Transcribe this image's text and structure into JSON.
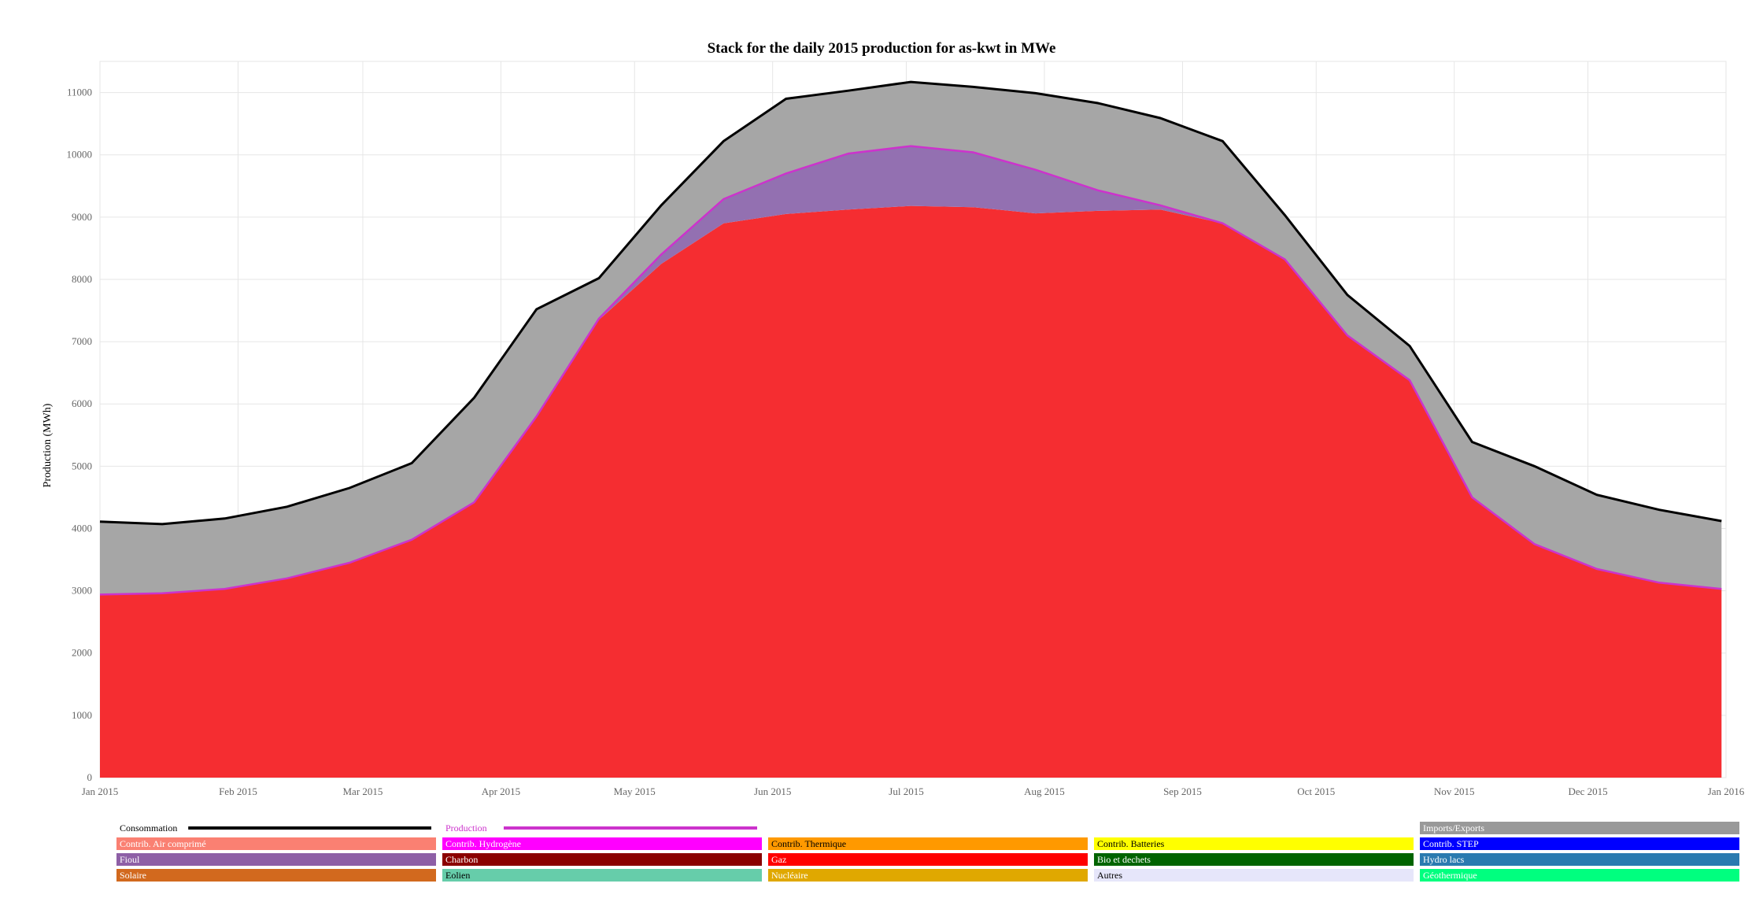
{
  "chart_data": {
    "type": "area",
    "title": "Stack for the daily 2015 production for as-kwt in MWe",
    "ylabel": "Production (MWh)",
    "xlabel": "",
    "ylim": [
      0,
      11500
    ],
    "yticks": [
      0,
      1000,
      2000,
      3000,
      4000,
      5000,
      6000,
      7000,
      8000,
      9000,
      10000,
      11000
    ],
    "x_tick_labels": [
      "Jan 2015",
      "Feb 2015",
      "Mar 2015",
      "Apr 2015",
      "May 2015",
      "Jun 2015",
      "Jul 2015",
      "Aug 2015",
      "Sep 2015",
      "Oct 2015",
      "Nov 2015",
      "Dec 2015",
      "Jan 2016"
    ],
    "x_tick_days": [
      0,
      31,
      59,
      90,
      120,
      151,
      181,
      212,
      243,
      273,
      304,
      334,
      365
    ],
    "grid": true,
    "legend_position": "bottom",
    "days": [
      0,
      14,
      28,
      42,
      56,
      70,
      84,
      98,
      112,
      126,
      140,
      154,
      168,
      182,
      196,
      210,
      224,
      238,
      252,
      266,
      280,
      294,
      308,
      322,
      336,
      350,
      364
    ],
    "series": [
      {
        "name": "Gaz",
        "color": "#f52d31",
        "values": [
          2940,
          2960,
          3030,
          3200,
          3450,
          3820,
          4420,
          5800,
          7350,
          8250,
          8900,
          9050,
          9120,
          9180,
          9160,
          9060,
          9100,
          9120,
          8900,
          8320,
          7100,
          6380,
          4500,
          3750,
          3350,
          3130,
          3030
        ]
      },
      {
        "name": "Fioul",
        "color": "#9370b1",
        "values": [
          0,
          0,
          0,
          0,
          0,
          0,
          0,
          0,
          20,
          150,
          390,
          650,
          900,
          960,
          880,
          700,
          330,
          70,
          0,
          0,
          0,
          0,
          0,
          0,
          0,
          0,
          0
        ]
      },
      {
        "name": "Imports/Exports",
        "color": "#a6a6a6",
        "values": [
          1170,
          1110,
          1130,
          1150,
          1200,
          1230,
          1680,
          1720,
          650,
          790,
          930,
          1200,
          1010,
          1030,
          1050,
          1230,
          1400,
          1400,
          1320,
          710,
          650,
          550,
          890,
          1250,
          1190,
          1170,
          1090
        ]
      }
    ],
    "consommation": {
      "name": "Consommation",
      "color": "#000000",
      "values": [
        4110,
        4070,
        4160,
        4350,
        4650,
        5050,
        6100,
        7520,
        8020,
        9190,
        10220,
        10900,
        11030,
        11170,
        11090,
        10990,
        10830,
        10590,
        10220,
        9030,
        7750,
        6930,
        5390,
        5000,
        4540,
        4300,
        4120
      ]
    },
    "production": {
      "name": "Production",
      "color": "#cc33cc"
    }
  },
  "legend": {
    "line_items": [
      {
        "label": "Consommation",
        "color": "#000000"
      },
      {
        "label": "Production",
        "color": "#cc33cc"
      }
    ],
    "box_items": [
      {
        "label": "Imports/Exports",
        "color": "#999999",
        "text_color": "#ffffff",
        "col": 4,
        "row": 0
      },
      {
        "label": "Contrib. Air comprimé",
        "color": "#fa8072",
        "text_color": "#ffffff",
        "col": 0,
        "row": 1
      },
      {
        "label": "Contrib. Hydrogène",
        "color": "#ff00ff",
        "text_color": "#ffffff",
        "col": 1,
        "row": 1
      },
      {
        "label": "Contrib. Thermique",
        "color": "#ff9900",
        "text_color": "#000000",
        "col": 2,
        "row": 1
      },
      {
        "label": "Contrib. Batteries",
        "color": "#ffff00",
        "text_color": "#000000",
        "col": 3,
        "row": 1
      },
      {
        "label": "Contrib. STEP",
        "color": "#0000ff",
        "text_color": "#ffffff",
        "col": 4,
        "row": 1
      },
      {
        "label": "Fioul",
        "color": "#8e5fa6",
        "text_color": "#ffffff",
        "col": 0,
        "row": 2
      },
      {
        "label": "Charbon",
        "color": "#8b0000",
        "text_color": "#ffffff",
        "col": 1,
        "row": 2
      },
      {
        "label": "Gaz",
        "color": "#ff0000",
        "text_color": "#ffffff",
        "col": 2,
        "row": 2
      },
      {
        "label": "Bio et dechets",
        "color": "#006400",
        "text_color": "#ffffff",
        "col": 3,
        "row": 2
      },
      {
        "label": "Hydro lacs",
        "color": "#2a7ab0",
        "text_color": "#ffffff",
        "col": 4,
        "row": 2
      },
      {
        "label": "Solaire",
        "color": "#d2691e",
        "text_color": "#ffffff",
        "col": 0,
        "row": 3
      },
      {
        "label": "Eolien",
        "color": "#66cdaa",
        "text_color": "#000000",
        "col": 1,
        "row": 3
      },
      {
        "label": "Nucléaire",
        "color": "#e0a800",
        "text_color": "#ffffff",
        "col": 2,
        "row": 3
      },
      {
        "label": "Autres",
        "color": "#e6e6fa",
        "text_color": "#000000",
        "col": 3,
        "row": 3
      },
      {
        "label": "Géothermique",
        "color": "#00ff7f",
        "text_color": "#ffffff",
        "col": 4,
        "row": 3
      }
    ]
  }
}
